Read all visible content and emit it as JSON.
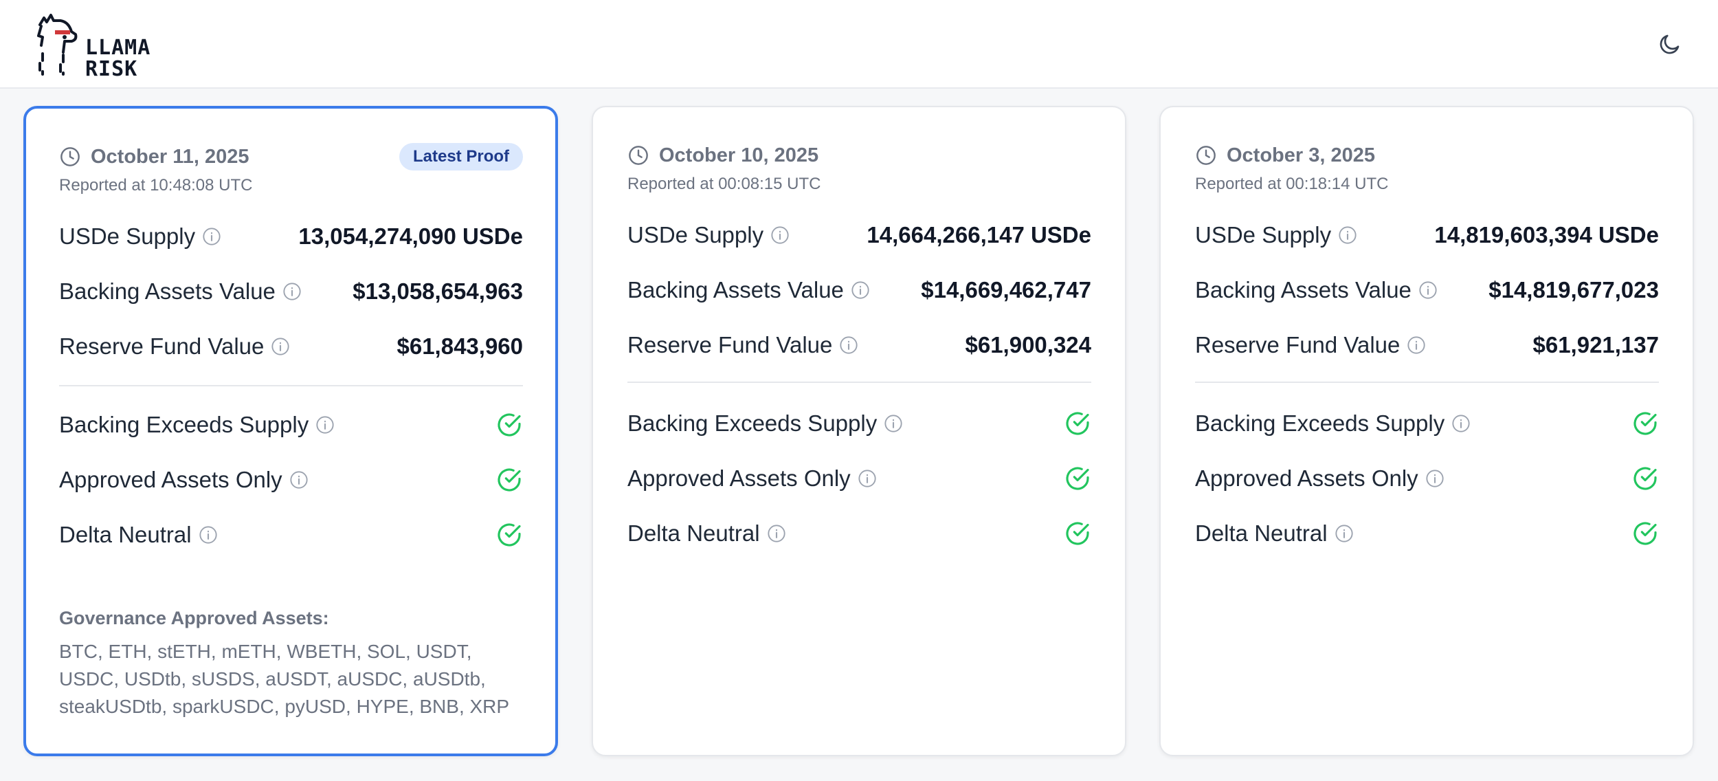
{
  "header": {
    "logo_text_line1": "LLAMA",
    "logo_text_line2": "RISK",
    "theme_toggle_icon": "moon-icon"
  },
  "colors": {
    "accent": "#3b7bea",
    "check": "#22c55e",
    "badge_bg": "#dbe8fd",
    "badge_text": "#1e3a8a"
  },
  "labels": {
    "usde_supply": "USDe Supply",
    "backing_assets_value": "Backing Assets Value",
    "reserve_fund_value": "Reserve Fund Value",
    "backing_exceeds_supply": "Backing Exceeds Supply",
    "approved_assets_only": "Approved Assets Only",
    "delta_neutral": "Delta Neutral",
    "latest_proof": "Latest Proof",
    "governance_title": "Governance Approved Assets:"
  },
  "cards": [
    {
      "date": "October 11, 2025",
      "reported": "Reported at 10:48:08 UTC",
      "usde_supply": "13,054,274,090 USDe",
      "backing_assets_value": "$13,058,654,963",
      "reserve_fund_value": "$61,843,960",
      "checks": {
        "backing_exceeds_supply": true,
        "approved_assets_only": true,
        "delta_neutral": true
      },
      "governance_assets": "BTC, ETH, stETH, mETH, WBETH, SOL, USDT, USDC, USDtb, sUSDS, aUSDT, aUSDC, aUSDtb, steakUSDtb, sparkUSDC, pyUSD, HYPE, BNB, XRP"
    },
    {
      "date": "October 10, 2025",
      "reported": "Reported at 00:08:15 UTC",
      "usde_supply": "14,664,266,147 USDe",
      "backing_assets_value": "$14,669,462,747",
      "reserve_fund_value": "$61,900,324",
      "checks": {
        "backing_exceeds_supply": true,
        "approved_assets_only": true,
        "delta_neutral": true
      }
    },
    {
      "date": "October 3, 2025",
      "reported": "Reported at 00:18:14 UTC",
      "usde_supply": "14,819,603,394 USDe",
      "backing_assets_value": "$14,819,677,023",
      "reserve_fund_value": "$61,921,137",
      "checks": {
        "backing_exceeds_supply": true,
        "approved_assets_only": true,
        "delta_neutral": true
      }
    }
  ]
}
